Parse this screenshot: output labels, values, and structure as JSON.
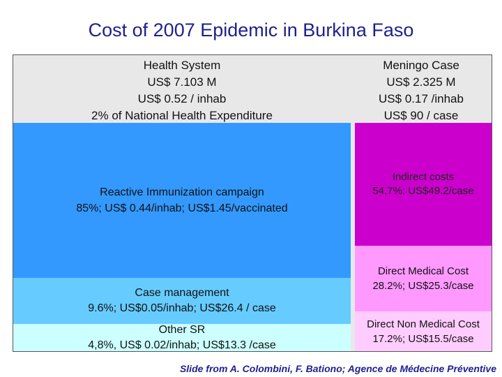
{
  "title": "Cost of 2007 Epidemic in Burkina Faso",
  "health_system": {
    "line1": "Health System",
    "line2": "US$ 7.103 M",
    "line3": "US$ 0.52 / inhab",
    "line4": "2% of National Health Expenditure"
  },
  "meningo_case": {
    "line1": "Meningo Case",
    "line2": "US$ 2.325 M",
    "line3": "US$ 0.17 /inhab",
    "line4": "US$ 90 / case"
  },
  "reactive_immunization": {
    "line1": "Reactive Immunization campaign",
    "line2": "85%; US$ 0.44/inhab; US$1.45/vaccinated"
  },
  "case_management": {
    "line1": "Case management",
    "line2": "9.6%; US$0.05/inhab; US$26.4 / case"
  },
  "other_sr": {
    "line1": "Other SR",
    "line2": "4,8%, US$ 0.02/inhab; US$13.3 /case"
  },
  "indirect_costs": {
    "line1": "Indirect costs",
    "line2": "54.7%; US$49.2/case"
  },
  "direct_medical": {
    "line1": "Direct Medical Cost",
    "line2": "28.2%; US$25.3/case"
  },
  "direct_non_medical": {
    "line1": "Direct Non Medical Cost",
    "line2": "17.2%; US$15.5/case"
  },
  "footer": "Slide from A. Colombini, F. Bationo; Agence de Médecine Préventive",
  "colors": {
    "title": "#1f1f8f",
    "reactive_immunization": "#3399ff",
    "case_management": "#66ccff",
    "other_sr": "#ccffff",
    "indirect_costs": "#cc00cc",
    "direct_medical": "#ff99ff",
    "direct_non_medical": "#ffccff",
    "header_bg": "#e8e8e8"
  }
}
